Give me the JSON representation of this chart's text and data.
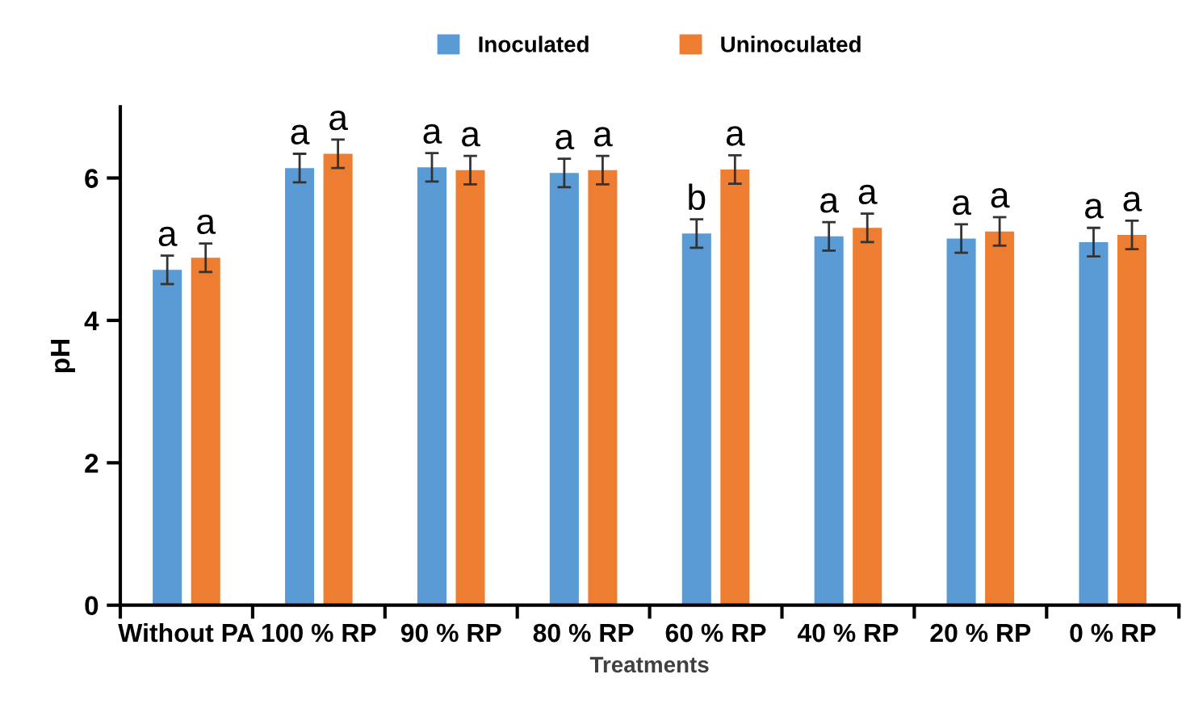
{
  "chart_data": {
    "type": "bar",
    "xlabel": "Treatments",
    "ylabel": "pH",
    "categories": [
      "Without PA",
      "100 % RP",
      "90 % RP",
      "80 % RP",
      "60 % RP",
      "40 % RP",
      "20 % RP",
      "0 % RP"
    ],
    "series": [
      {
        "name": "Inoculated",
        "color": "#5b9bd5",
        "values": [
          4.71,
          6.14,
          6.15,
          6.07,
          5.22,
          5.18,
          5.15,
          5.1
        ],
        "errors": [
          0.2,
          0.2,
          0.2,
          0.2,
          0.2,
          0.2,
          0.2,
          0.2
        ],
        "value_labels": [
          "a",
          "a",
          "a",
          "a",
          "b",
          "a",
          "a",
          "a"
        ]
      },
      {
        "name": "Uninoculated",
        "color": "#ed7d31",
        "values": [
          4.88,
          6.34,
          6.11,
          6.11,
          6.12,
          5.3,
          5.25,
          5.2
        ],
        "errors": [
          0.2,
          0.2,
          0.2,
          0.2,
          0.2,
          0.2,
          0.2,
          0.2
        ],
        "value_labels": [
          "a",
          "a",
          "a",
          "a",
          "a",
          "a",
          "a",
          "a"
        ]
      }
    ],
    "ylim": [
      0,
      7
    ],
    "yticks": [
      0,
      2,
      4,
      6
    ],
    "grid": false,
    "legend": "top"
  }
}
